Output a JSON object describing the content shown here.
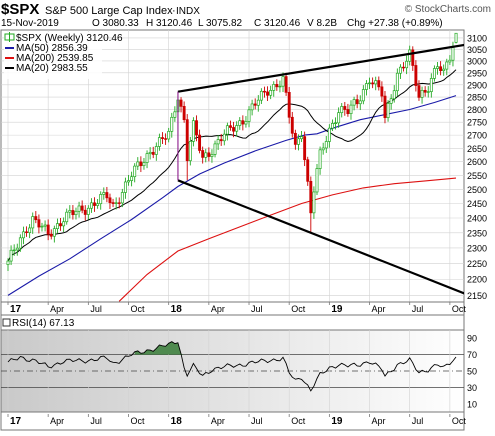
{
  "header": {
    "symbol": "$SPX",
    "name": "S&P 500 Large Cap Index",
    "exchange": "INDX",
    "watermark": "© StockCharts.com",
    "date": "15-Nov-2019",
    "open": "O 3080.33",
    "high": "H 3120.46",
    "low": "L 3075.82",
    "close": "C 3120.46",
    "volume": "V 8.2B",
    "change": "Chg +27.38 (+0.89%)"
  },
  "legend": {
    "price": "$SPX (Weekly) 3120.46",
    "ma50": "MA(50) 2856.39",
    "ma200": "MA(200) 2539.85",
    "ma20": "MA(20) 2983.55"
  },
  "rsi_label": "RSI(14) 67.13",
  "colors": {
    "up": "#22aa22",
    "down": "#cc0000",
    "ma50": "#1a1aa8",
    "ma200": "#dd1111",
    "ma20": "#000000",
    "rsi_fill": "#4f8a4f",
    "grid": "#d2d2d2"
  },
  "chart_data": [
    {
      "type": "candlestick",
      "title": "$SPX (Weekly)",
      "interval": "weekly",
      "yscale": "log",
      "ylim": [
        2130,
        3135
      ],
      "grid": true,
      "y_ticks": [
        2150,
        2200,
        2250,
        2300,
        2350,
        2400,
        2450,
        2500,
        2550,
        2600,
        2650,
        2700,
        2750,
        2800,
        2850,
        2900,
        2950,
        3000,
        3050,
        3100
      ],
      "x_labels": [
        "17",
        "Apr",
        "Jul",
        "Oct",
        "18",
        "Apr",
        "Jul",
        "Oct",
        "19",
        "Apr",
        "Jul",
        "Oct"
      ],
      "close_anchors": [
        {
          "week": 0,
          "value": 2250
        },
        {
          "week": 6,
          "value": 2370
        },
        {
          "week": 8,
          "value": 2395
        },
        {
          "week": 13,
          "value": 2345
        },
        {
          "week": 18,
          "value": 2400
        },
        {
          "week": 26,
          "value": 2440
        },
        {
          "week": 32,
          "value": 2475
        },
        {
          "week": 34,
          "value": 2440
        },
        {
          "week": 40,
          "value": 2550
        },
        {
          "week": 46,
          "value": 2640
        },
        {
          "week": 52,
          "value": 2700
        },
        {
          "week": 55,
          "value": 2860
        },
        {
          "week": 57,
          "value": 2760
        },
        {
          "week": 58,
          "value": 2620
        },
        {
          "week": 60,
          "value": 2730
        },
        {
          "week": 63,
          "value": 2610
        },
        {
          "week": 66,
          "value": 2650
        },
        {
          "week": 70,
          "value": 2700
        },
        {
          "week": 76,
          "value": 2760
        },
        {
          "week": 84,
          "value": 2880
        },
        {
          "week": 89,
          "value": 2920
        },
        {
          "week": 91,
          "value": 2770
        },
        {
          "week": 93,
          "value": 2650
        },
        {
          "week": 95,
          "value": 2720
        },
        {
          "week": 98,
          "value": 2420
        },
        {
          "week": 99,
          "value": 2500
        },
        {
          "week": 101,
          "value": 2620
        },
        {
          "week": 104,
          "value": 2720
        },
        {
          "week": 107,
          "value": 2800
        },
        {
          "week": 110,
          "value": 2790
        },
        {
          "week": 113,
          "value": 2830
        },
        {
          "week": 117,
          "value": 2930
        },
        {
          "week": 121,
          "value": 2860
        },
        {
          "week": 122,
          "value": 2760
        },
        {
          "week": 126,
          "value": 2950
        },
        {
          "week": 130,
          "value": 3020
        },
        {
          "week": 133,
          "value": 2850
        },
        {
          "week": 136,
          "value": 2900
        },
        {
          "week": 139,
          "value": 2980
        },
        {
          "week": 141,
          "value": 2940
        },
        {
          "week": 143,
          "value": 3020
        },
        {
          "week": 145,
          "value": 3120.46
        }
      ],
      "last_bar": {
        "open": 3080.33,
        "high": 3120.46,
        "low": 3075.82,
        "close": 3120.46
      },
      "moving_averages": [
        {
          "name": "MA(20)",
          "period": 20,
          "last": 2983.55
        },
        {
          "name": "MA(50)",
          "period": 50,
          "last": 2856.39
        },
        {
          "name": "MA(200)",
          "period": 200,
          "last": 2539.85
        }
      ],
      "trendlines": [
        {
          "from": {
            "week": 55,
            "value": 2872
          },
          "to": {
            "week": 148,
            "value": 3070
          }
        },
        {
          "from": {
            "week": 55,
            "value": 2532
          },
          "to": {
            "week": 148,
            "value": 2155
          }
        }
      ],
      "vertical_markers": [
        {
          "from": {
            "week": 55,
            "value": 2872
          },
          "to": {
            "week": 55,
            "value": 2532
          }
        }
      ]
    },
    {
      "type": "line",
      "title": "RSI(14)",
      "ylim": [
        0,
        100
      ],
      "y_ticks": [
        10,
        30,
        50,
        70,
        90
      ],
      "levels": [
        70,
        50,
        30
      ],
      "x_labels": [
        "17",
        "Apr",
        "Jul",
        "Oct",
        "18",
        "Apr",
        "Jul",
        "Oct",
        "19",
        "Apr",
        "Jul",
        "Oct"
      ],
      "values_anchors": [
        {
          "week": 0,
          "value": 60
        },
        {
          "week": 4,
          "value": 67
        },
        {
          "week": 9,
          "value": 62
        },
        {
          "week": 13,
          "value": 55
        },
        {
          "week": 18,
          "value": 62
        },
        {
          "week": 26,
          "value": 63
        },
        {
          "week": 32,
          "value": 66
        },
        {
          "week": 34,
          "value": 59
        },
        {
          "week": 40,
          "value": 70
        },
        {
          "week": 46,
          "value": 76
        },
        {
          "week": 52,
          "value": 82
        },
        {
          "week": 55,
          "value": 87
        },
        {
          "week": 57,
          "value": 54
        },
        {
          "week": 58,
          "value": 46
        },
        {
          "week": 60,
          "value": 56
        },
        {
          "week": 63,
          "value": 44
        },
        {
          "week": 66,
          "value": 52
        },
        {
          "week": 70,
          "value": 55
        },
        {
          "week": 76,
          "value": 58
        },
        {
          "week": 84,
          "value": 63
        },
        {
          "week": 89,
          "value": 65
        },
        {
          "week": 91,
          "value": 48
        },
        {
          "week": 93,
          "value": 38
        },
        {
          "week": 95,
          "value": 43
        },
        {
          "week": 98,
          "value": 26
        },
        {
          "week": 99,
          "value": 33
        },
        {
          "week": 101,
          "value": 45
        },
        {
          "week": 104,
          "value": 54
        },
        {
          "week": 107,
          "value": 58
        },
        {
          "week": 110,
          "value": 56
        },
        {
          "week": 113,
          "value": 57
        },
        {
          "week": 117,
          "value": 62
        },
        {
          "week": 121,
          "value": 52
        },
        {
          "week": 122,
          "value": 43
        },
        {
          "week": 126,
          "value": 58
        },
        {
          "week": 130,
          "value": 63
        },
        {
          "week": 133,
          "value": 48
        },
        {
          "week": 136,
          "value": 52
        },
        {
          "week": 139,
          "value": 58
        },
        {
          "week": 141,
          "value": 53
        },
        {
          "week": 143,
          "value": 60
        },
        {
          "week": 145,
          "value": 67.13
        }
      ]
    }
  ]
}
